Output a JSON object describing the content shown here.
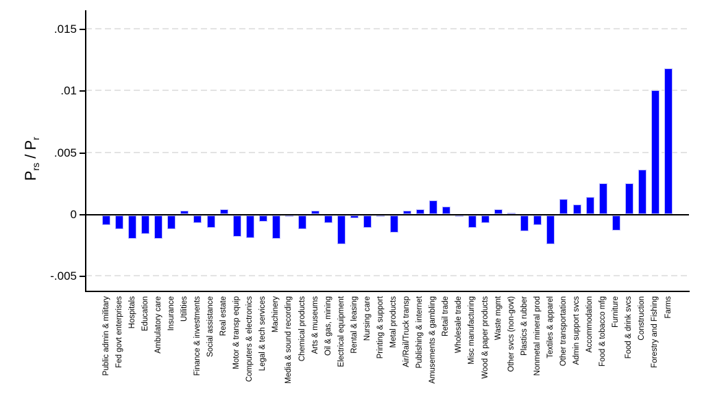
{
  "chart_data": {
    "type": "bar",
    "title": "",
    "xlabel": "",
    "ylabel": "P_rs / P_r",
    "ylabel_parts": {
      "p1": "P",
      "sub1": "rs",
      "p2": " / P",
      "sub2": "r"
    },
    "ylim": [
      -0.0061,
      0.0163
    ],
    "yticks": [
      -0.005,
      0,
      0.005,
      0.01,
      0.015
    ],
    "ytick_labels": [
      "-.005",
      "0",
      ".005",
      ".01",
      ".015"
    ],
    "grid": "horizontal-dashed",
    "legend": "none",
    "bar_color": "#0000ff",
    "categories": [
      "Public admin & military",
      "Fed govt enterprises",
      "Hospitals",
      "Education",
      "Ambulatory care",
      "Insurance",
      "Utilities",
      "Finance & investments",
      "Social assistance",
      "Real estate",
      "Motor & transp equip",
      "Computers & electronics",
      "Legal & tech services",
      "Machinery",
      "Media & sound recording",
      "Chemical products",
      "Arts & museums",
      "Oil & gas, mining",
      "Electrical equipment",
      "Rental & leasing",
      "Nursing care",
      "Printing & support",
      "Metal products",
      "Air/Rail/Truck transp",
      "Publishing & internet",
      "Amusements & gambling",
      "Retail trade",
      "Wholesale trade",
      "Misc manufacturing",
      "Wood & paper products",
      "Waste mgmt",
      "Other svcs (non-govt)",
      "Plastics & rubber",
      "Nonmetal mineral prod",
      "Textiles & apparel",
      "Other transportation",
      "Admin support svcs",
      "Accommodation",
      "Food & tobacco mfg",
      "Furniture",
      "Food & drink svcs",
      "Construction",
      "Forestry and Fishing",
      "Farms"
    ],
    "values": [
      -0.0008,
      -0.0011,
      -0.0019,
      -0.0015,
      -0.0019,
      -0.0011,
      0.0003,
      -0.0006,
      -0.001,
      0.0004,
      -0.0017,
      -0.0018,
      -0.0005,
      -0.0019,
      -0.0001,
      -0.0011,
      0.0003,
      -0.0006,
      -0.0023,
      -0.0002,
      -0.001,
      -0.0001,
      -0.0014,
      0.0003,
      0.0004,
      0.0011,
      0.0006,
      -0.0001,
      -0.001,
      -0.0006,
      0.0004,
      0.0001,
      -0.0013,
      -0.0008,
      -0.0023,
      0.0012,
      0.0008,
      0.0014,
      0.0025,
      -0.0012,
      0.0025,
      0.0036,
      0.01,
      0.0118
    ]
  }
}
